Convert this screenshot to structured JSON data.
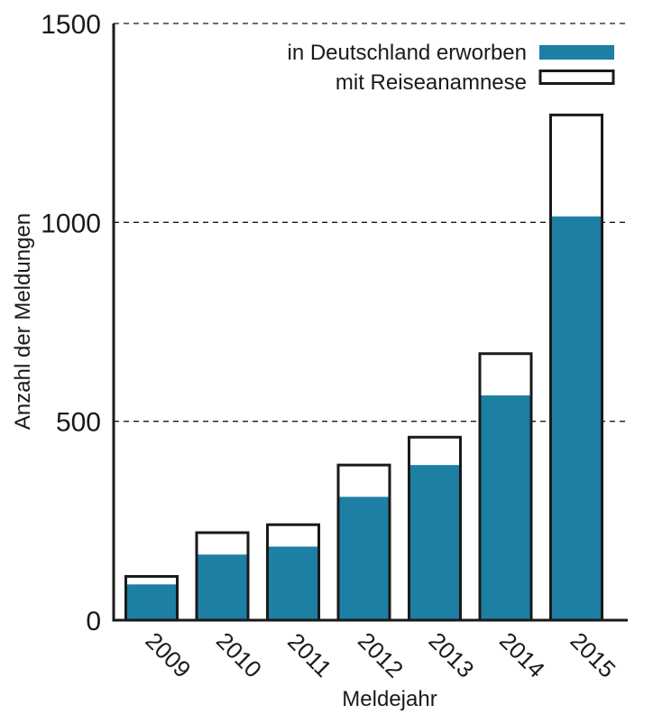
{
  "chart_data": {
    "type": "bar",
    "stacked": true,
    "categories": [
      "2009",
      "2010",
      "2011",
      "2012",
      "2013",
      "2014",
      "2015"
    ],
    "series": [
      {
        "name": "in Deutschland erworben",
        "values": [
          90,
          165,
          185,
          310,
          390,
          565,
          1015
        ],
        "color": "#1d7fa3"
      },
      {
        "name": "mit Reiseanamnese",
        "values": [
          20,
          55,
          55,
          80,
          70,
          105,
          255
        ],
        "color": "#ffffff"
      }
    ],
    "xlabel": "Meldejahr",
    "ylabel": "Anzahl der Meldungen",
    "ylim": [
      0,
      1500
    ],
    "yticks": [
      0,
      500,
      1000,
      1500
    ],
    "grid": "horizontal-dashed",
    "legend_position": "top-right",
    "outline_color": "#1a1a1a"
  }
}
